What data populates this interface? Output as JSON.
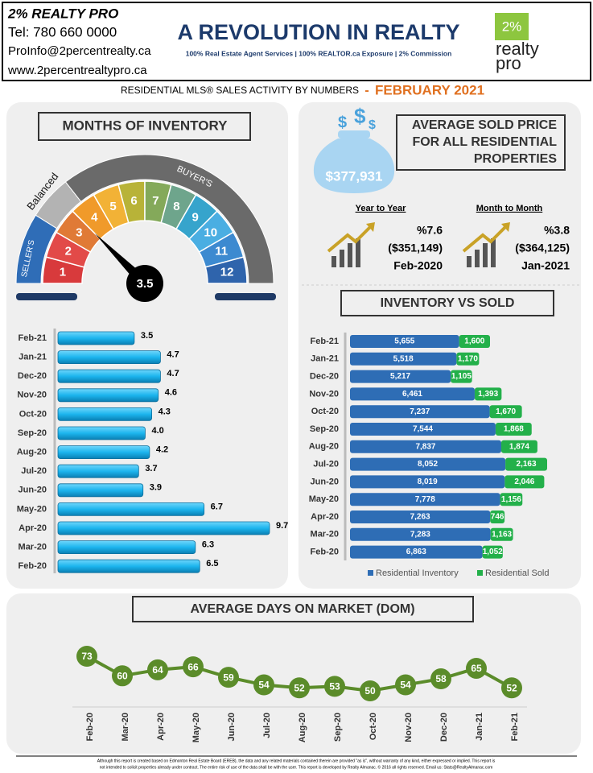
{
  "header": {
    "company": "2% REALTY PRO",
    "tel": "Tel: 780 660 0000",
    "email": "ProInfo@2percentrealty.ca",
    "website": "www.2percentrealtypro.ca",
    "title": "A REVOLUTION IN REALTY",
    "tagline": "100% Real Estate Agent Services | 100% REALTOR.ca Exposure | 2% Commission",
    "logo": [
      "2%",
      "realty",
      "pro"
    ]
  },
  "subtitle": {
    "text": "RESIDENTIAL MLS® SALES ACTIVITY BY NUMBERS",
    "dash": "-",
    "period": "FEBRUARY 2021"
  },
  "chart_data": [
    {
      "type": "gauge",
      "title": "MONTHS OF INVENTORY",
      "value": 3.5,
      "ticks": [
        1,
        2,
        3,
        4,
        5,
        6,
        7,
        8,
        9,
        10,
        11,
        12
      ],
      "tick_colors": [
        "#d83a3c",
        "#e24a48",
        "#e07a36",
        "#f09a2a",
        "#f2b236",
        "#b8b338",
        "#84a95a",
        "#6ea58c",
        "#36a4cc",
        "#4aaee2",
        "#3d8ad0",
        "#2f64ac"
      ],
      "zones": [
        "SELLER'S",
        "Balanced",
        "BUYER'S"
      ]
    },
    {
      "type": "bar",
      "orientation": "horizontal",
      "color": "#1cb5ee",
      "categories": [
        "Feb-21",
        "Jan-21",
        "Dec-20",
        "Nov-20",
        "Oct-20",
        "Sep-20",
        "Aug-20",
        "Jul-20",
        "Jun-20",
        "May-20",
        "Apr-20",
        "Mar-20",
        "Feb-20"
      ],
      "values": [
        3.5,
        4.7,
        4.7,
        4.6,
        4.3,
        4.0,
        4.2,
        3.7,
        3.9,
        6.7,
        9.7,
        6.3,
        6.5
      ],
      "value_labels": [
        "3.5",
        "4.7",
        "4.7",
        "4.6",
        "4.3",
        "4.0",
        "4.2",
        "3.7",
        "3.9",
        "6.7",
        "9.7",
        "6.3",
        "6.5"
      ]
    },
    {
      "type": "stacked-bar",
      "orientation": "horizontal",
      "title": "INVENTORY VS SOLD",
      "categories": [
        "Feb-21",
        "Jan-21",
        "Dec-20",
        "Nov-20",
        "Oct-20",
        "Sep-20",
        "Aug-20",
        "Jul-20",
        "Jun-20",
        "May-20",
        "Apr-20",
        "Mar-20",
        "Feb-20"
      ],
      "series": [
        {
          "name": "Residential Inventory",
          "color": "#2e6db5",
          "values": [
            5655,
            5518,
            5217,
            6461,
            7237,
            7544,
            7837,
            8052,
            8019,
            7778,
            7263,
            7283,
            6863
          ],
          "value_labels": [
            "5,655",
            "5,518",
            "5,217",
            "6,461",
            "7,237",
            "7,544",
            "7,837",
            "8,052",
            "8,019",
            "7,778",
            "7,263",
            "7,283",
            "6,863"
          ]
        },
        {
          "name": "Residential Sold",
          "color": "#23b04a",
          "values": [
            1600,
            1170,
            1105,
            1393,
            1670,
            1868,
            1874,
            2163,
            2046,
            1156,
            746,
            1163,
            1052
          ],
          "value_labels": [
            "1,600",
            "1,170",
            "1,105",
            "1,393",
            "1,670",
            "1,868",
            "1,874",
            "2,163",
            "2,046",
            "1,156",
            "746",
            "1,163",
            "1,052"
          ]
        }
      ]
    },
    {
      "type": "line",
      "title": "AVERAGE DAYS ON MARKET (DOM)",
      "color": "#5b8c2a",
      "categories": [
        "Feb-20",
        "Mar-20",
        "Apr-20",
        "May-20",
        "Jun-20",
        "Jul-20",
        "Aug-20",
        "Sep-20",
        "Oct-20",
        "Nov-20",
        "Dec-20",
        "Jan-21",
        "Feb-21"
      ],
      "values": [
        73,
        60,
        64,
        66,
        59,
        54,
        52,
        53,
        50,
        54,
        58,
        65,
        52
      ]
    }
  ],
  "price": {
    "title": [
      "AVERAGE  SOLD PRICE",
      "FOR ALL RESIDENTIAL",
      "PROPERTIES"
    ],
    "value": "$377,931",
    "comparisons": [
      {
        "label": "Year to Year",
        "change": "%7.6",
        "previous": "($351,149)",
        "period": "Feb-2020"
      },
      {
        "label": "Month to Month",
        "change": "%3.8",
        "previous": "($364,125)",
        "period": "Jan-2021"
      }
    ]
  },
  "footer": [
    "Although this report is created based on Edmonton Real Estate Board (EREB), the data and any related materials contained therein are provided \"as is\", without warranty of any kind, either expressed or implied.  This report is",
    "not intended to solicit properties already under contract.  The entire risk of use of the data shall be with the user.  This report is developed by Realty Almanac. © 2016 all rights reserved. Email us: Stats@RealtyAlmanac.com"
  ]
}
